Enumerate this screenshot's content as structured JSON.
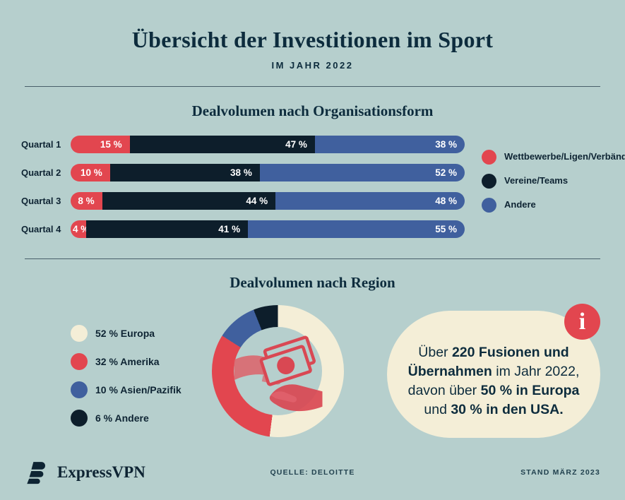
{
  "colors": {
    "background": "#b6cfcd",
    "navy": "#0e2433",
    "heading": "#0d2c3d",
    "red": "#e2464f",
    "blue": "#40609e",
    "dark": "#0d1e2b",
    "cream": "#f4eed7"
  },
  "header": {
    "title": "Übersicht der Investitionen im Sport",
    "subtitle": "IM JAHR 2022"
  },
  "section_org": {
    "title": "Dealvolumen nach Organisationsform"
  },
  "section_region": {
    "title": "Dealvolumen nach Region"
  },
  "info_box": {
    "icon_glyph": "i",
    "lines": [
      [
        {
          "t": "Über ",
          "b": false
        },
        {
          "t": "220 Fusionen und",
          "b": true
        }
      ],
      [
        {
          "t": "Übernahmen",
          "b": true
        },
        {
          "t": " im Jahr 2022,",
          "b": false
        }
      ],
      [
        {
          "t": "davon über ",
          "b": false
        },
        {
          "t": "50 % in Europa",
          "b": true
        }
      ],
      [
        {
          "t": "und ",
          "b": false
        },
        {
          "t": "30 % in den USA.",
          "b": true
        }
      ]
    ]
  },
  "footer": {
    "logo_text": "ExpressVPN",
    "source": "QUELLE: DELOITTE",
    "date": "STAND MÄRZ 2023"
  },
  "chart_data": [
    {
      "type": "bar",
      "stacked": true,
      "orientation": "horizontal",
      "title": "Dealvolumen nach Organisationsform",
      "categories": [
        "Quartal 1",
        "Quartal 2",
        "Quartal 3",
        "Quartal 4"
      ],
      "series": [
        {
          "name": "Wettbewerbe/Ligen/Verbände",
          "color": "#e2464f",
          "values": [
            15,
            10,
            8,
            4
          ]
        },
        {
          "name": "Vereine/Teams",
          "color": "#0d1e2b",
          "values": [
            47,
            38,
            44,
            41
          ]
        },
        {
          "name": "Andere",
          "color": "#40609e",
          "values": [
            38,
            52,
            48,
            55
          ]
        }
      ],
      "unit": "%",
      "value_label_format": "{v} %",
      "xlim": [
        0,
        100
      ],
      "legend_position": "right",
      "grid": false
    },
    {
      "type": "pie",
      "donut": true,
      "title": "Dealvolumen nach Region",
      "labels": [
        "Europa",
        "Amerika",
        "Asien/Pazifik",
        "Andere"
      ],
      "values": [
        52,
        32,
        10,
        6
      ],
      "colors": [
        "#f4eed7",
        "#e2464f",
        "#40609e",
        "#0d1e2b"
      ],
      "unit": "%",
      "legend_format": "{v} % {label}",
      "legend_position": "left",
      "start_angle_deg": 0,
      "direction": "clockwise",
      "center_icon": "hands-exchanging-money"
    }
  ]
}
